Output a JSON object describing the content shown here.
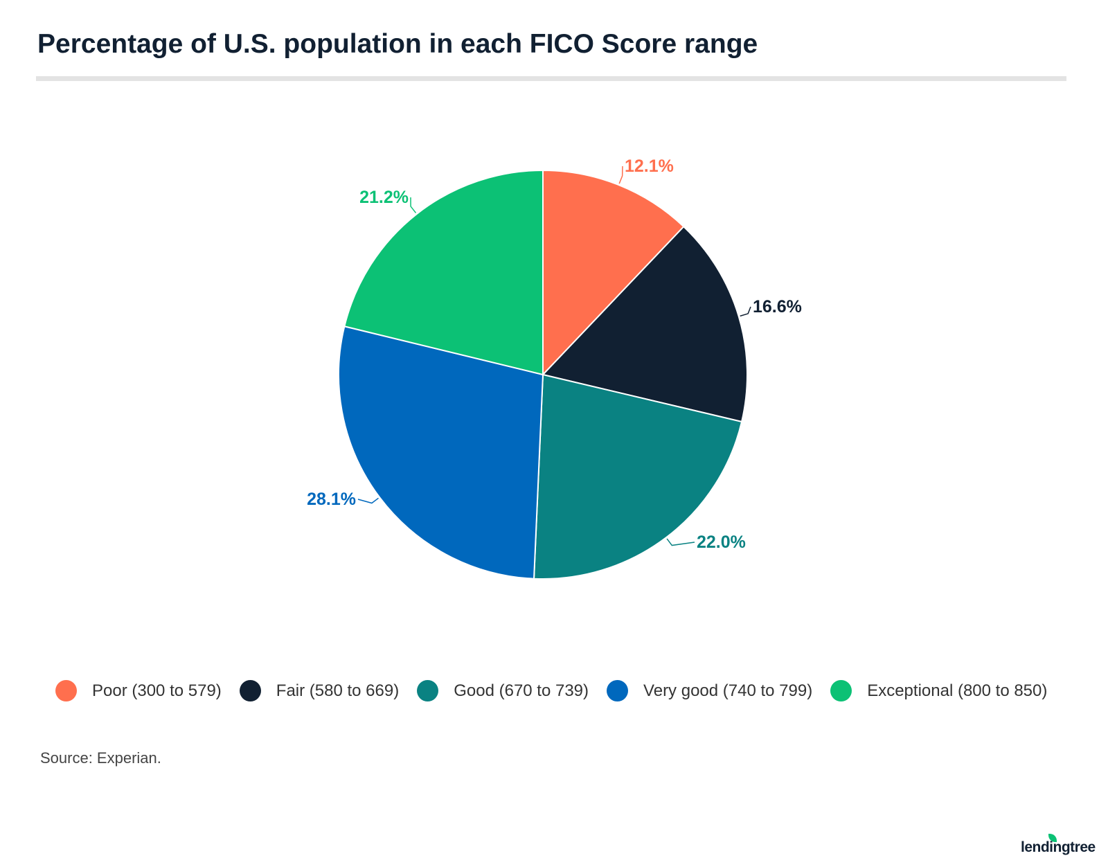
{
  "chart_data": {
    "type": "pie",
    "title": "Percentage of U.S. population in each FICO Score range",
    "start_angle": "12 o'clock, clockwise",
    "slices": [
      {
        "label": "Poor (300 to 579)",
        "value": 12.1,
        "display": "12.1%",
        "color": "#FF6F4E"
      },
      {
        "label": "Fair (580 to 669)",
        "value": 16.6,
        "display": "16.6%",
        "color": "#112032"
      },
      {
        "label": "Good (670 to 739)",
        "value": 22.0,
        "display": "22.0%",
        "color": "#0A8282"
      },
      {
        "label": "Very good (740 to 799)",
        "value": 28.1,
        "display": "28.1%",
        "color": "#0068BD"
      },
      {
        "label": "Exceptional (800 to 850)",
        "value": 21.2,
        "display": "21.2%",
        "color": "#0CC175"
      }
    ],
    "legend_position": "bottom"
  },
  "source": "Source: Experian.",
  "logo": "lendingtree"
}
